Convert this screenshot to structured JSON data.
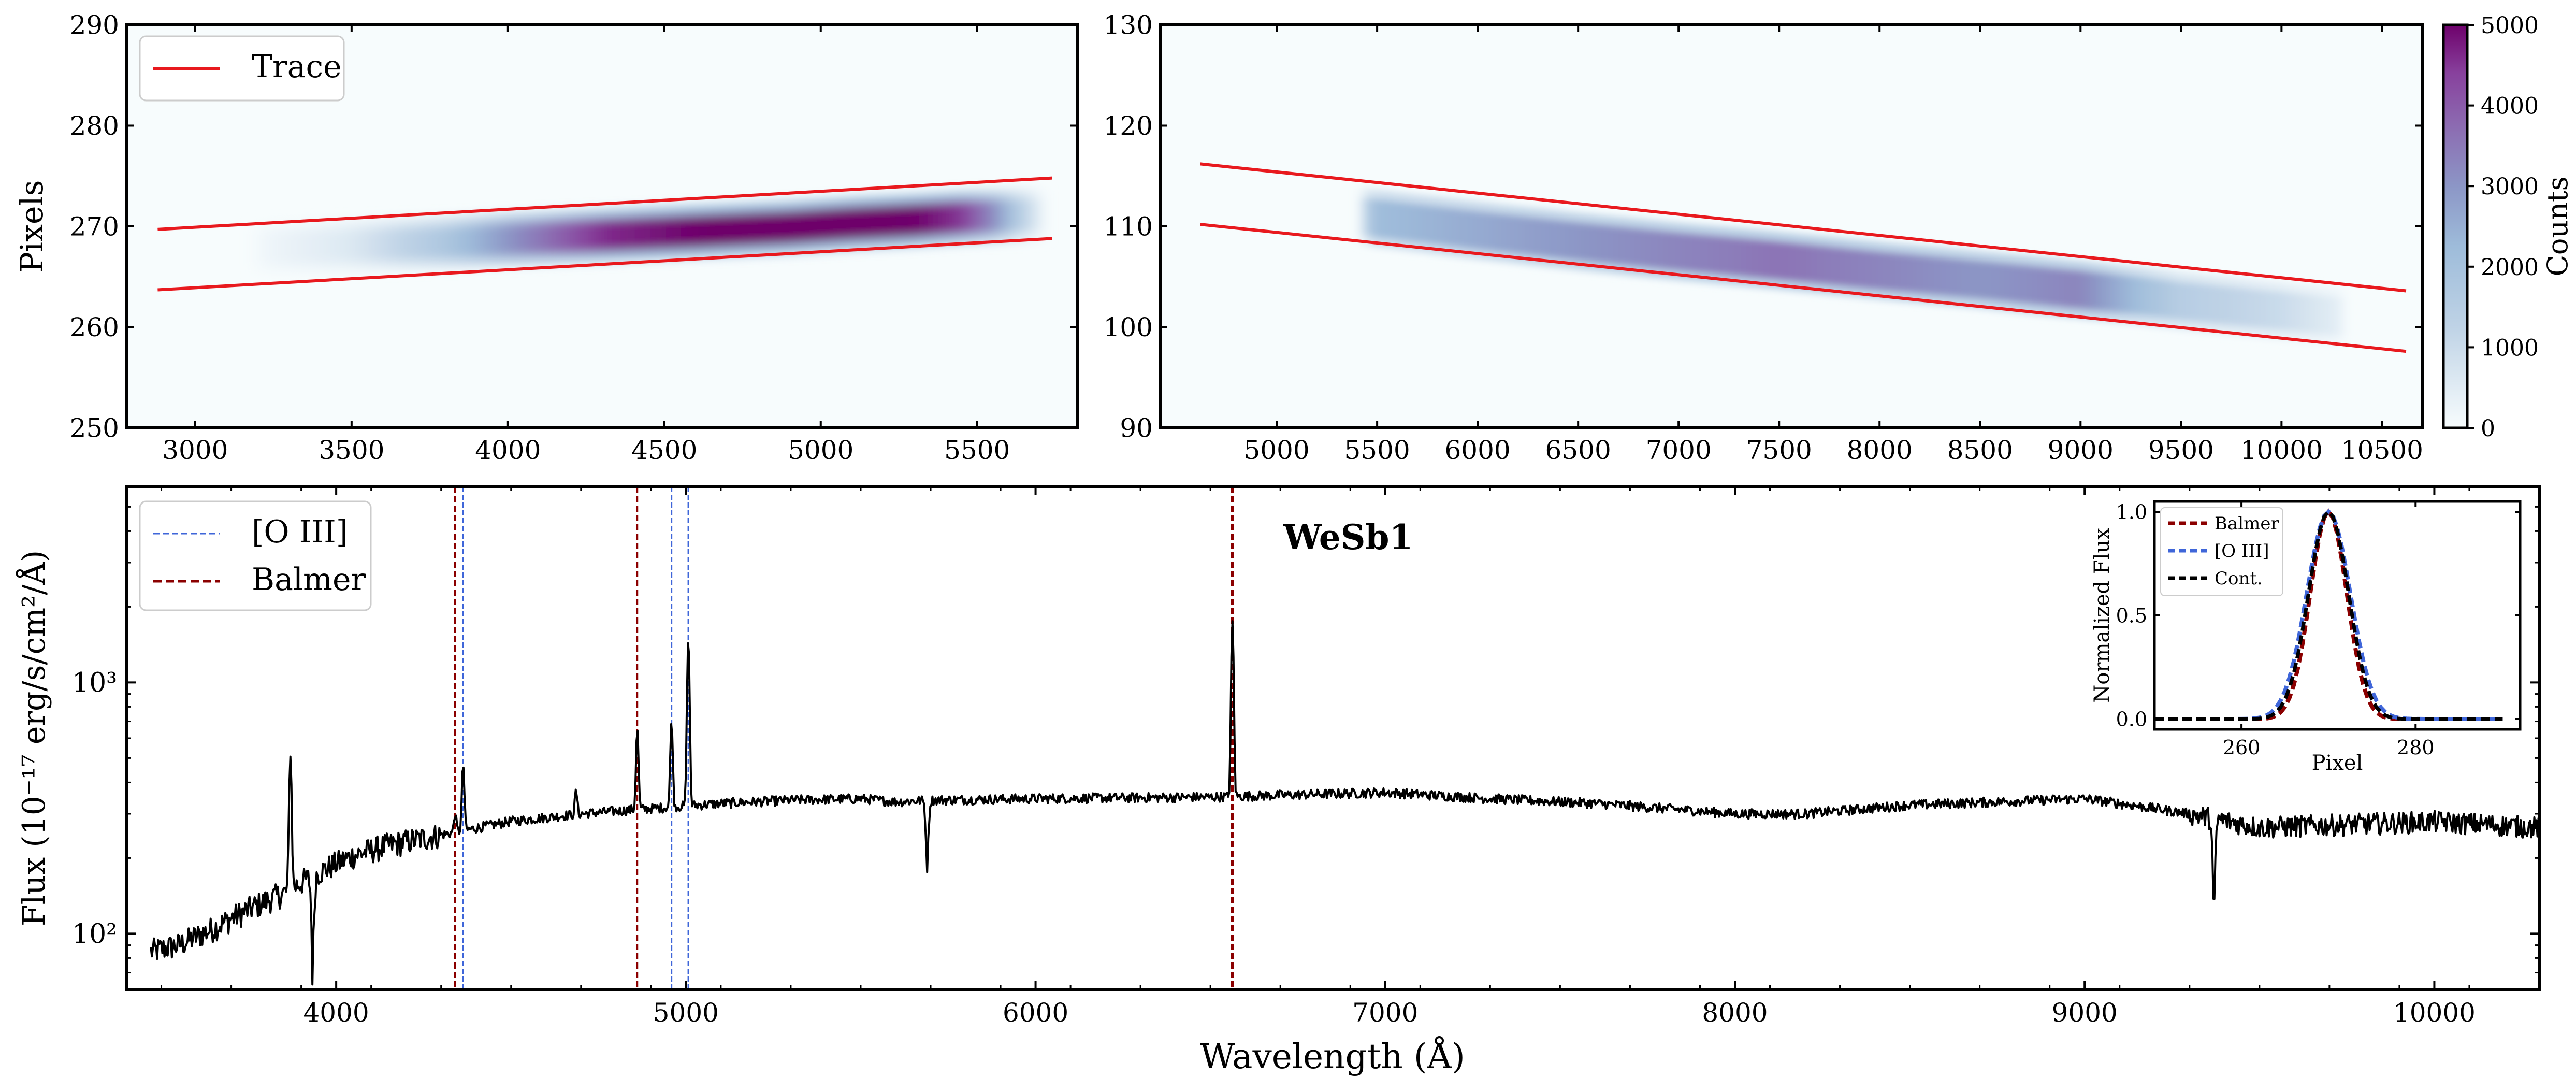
{
  "colors": {
    "trace": "#e8191e",
    "balmer": "#8b0000",
    "oiii": "#3f66d9",
    "spectrum": "#000000",
    "cont": "#000000"
  },
  "chart_data": [
    {
      "id": "spec2d-blue",
      "type": "heatmap",
      "title": "",
      "xlabel": "",
      "ylabel": "Pixels",
      "xlim": [
        2780,
        5820
      ],
      "ylim": [
        250,
        290
      ],
      "xticks": [
        "3000",
        "3500",
        "4000",
        "4500",
        "5000",
        "5500"
      ],
      "yticks": [
        "250",
        "260",
        "270",
        "280",
        "290"
      ],
      "legend": {
        "placement": "top-left",
        "entries": [
          {
            "label": "Trace",
            "style": "trace"
          }
        ]
      },
      "trace_upper": {
        "x": [
          2880,
          5740
        ],
        "y": [
          269.7,
          274.8
        ]
      },
      "trace_lower": {
        "x": [
          2880,
          5740
        ],
        "y": [
          263.7,
          268.8
        ]
      },
      "band": {
        "x": [
          3200,
          3500,
          3800,
          4000,
          4300,
          4600,
          4900,
          5100,
          5300,
          5450,
          5550,
          5620,
          5700
        ],
        "center": [
          267.8,
          268.1,
          268.4,
          268.7,
          269.1,
          269.5,
          269.9,
          270.3,
          270.6,
          270.9,
          271.0,
          271.1,
          271.2
        ],
        "counts": [
          150,
          600,
          1800,
          3000,
          4600,
          5000,
          5000,
          5000,
          5000,
          4500,
          3200,
          1800,
          500
        ]
      }
    },
    {
      "id": "spec2d-red",
      "type": "heatmap",
      "title": "",
      "xlabel": "",
      "ylabel": "",
      "xlim": [
        4420,
        10700
      ],
      "ylim": [
        90,
        130
      ],
      "xticks": [
        "5000",
        "5500",
        "6000",
        "6500",
        "7000",
        "7500",
        "8000",
        "8500",
        "9000",
        "9500",
        "10000",
        "10500"
      ],
      "yticks": [
        "90",
        "100",
        "110",
        "120",
        "130"
      ],
      "colorbar": {
        "label": "Counts",
        "ticks": [
          "0",
          "1000",
          "2000",
          "3000",
          "4000",
          "5000"
        ],
        "range": [
          0,
          5000
        ]
      },
      "trace_upper": {
        "x": [
          4620,
          10620
        ],
        "y": [
          116.2,
          103.6
        ]
      },
      "trace_lower": {
        "x": [
          4620,
          10620
        ],
        "y": [
          110.2,
          97.6
        ]
      },
      "band": {
        "x": [
          5430,
          5500,
          6000,
          6500,
          7000,
          7500,
          8000,
          8500,
          9000,
          9300,
          9500,
          10000,
          10300
        ],
        "center": [
          111.0,
          110.8,
          109.6,
          108.5,
          107.5,
          106.6,
          105.6,
          104.7,
          103.7,
          103.1,
          102.6,
          101.6,
          101.0
        ],
        "counts": [
          1400,
          2200,
          2600,
          3000,
          3300,
          3600,
          3300,
          3000,
          3300,
          2100,
          1500,
          1000,
          400
        ]
      }
    },
    {
      "id": "spectrum-1d",
      "type": "line",
      "title": "WeSb1",
      "xlabel": "Wavelength (Å)",
      "ylabel": "Flux (10⁻¹⁷ erg/s/cm²/Å)",
      "xlim": [
        3400,
        10300
      ],
      "ylim": [
        60,
        6000
      ],
      "yscale": "log",
      "xticks": [
        "4000",
        "5000",
        "6000",
        "7000",
        "8000",
        "9000",
        "10000"
      ],
      "yticks": [
        "10²",
        "10³"
      ],
      "legend": {
        "placement": "top-left",
        "entries": [
          {
            "label": "[O III]",
            "style": "oiii"
          },
          {
            "label": "Balmer",
            "style": "balmer"
          }
        ]
      },
      "balmer_lines": [
        4340,
        4861,
        6563
      ],
      "oiii_lines": [
        4363,
        4959,
        5007
      ],
      "continuum": {
        "x": [
          3470,
          3550,
          3650,
          3750,
          3850,
          3950,
          4050,
          4150,
          4250,
          4350,
          4500,
          4700,
          4900,
          5100,
          5300,
          5500,
          5600,
          5700,
          6000,
          6500,
          7000,
          7300,
          7600,
          8000,
          8200,
          8500,
          9000,
          9300,
          9500,
          10000,
          10300
        ],
        "y": [
          85,
          90,
          105,
          125,
          145,
          175,
          205,
          225,
          240,
          255,
          280,
          300,
          315,
          330,
          340,
          345,
          335,
          340,
          345,
          350,
          365,
          345,
          330,
          300,
          300,
          325,
          345,
          300,
          265,
          280,
          265
        ]
      },
      "lines": [
        {
          "x": 3869,
          "peak": 520
        },
        {
          "x": 4340,
          "peak": 300
        },
        {
          "x": 4363,
          "peak": 470
        },
        {
          "x": 4686,
          "peak": 370
        },
        {
          "x": 4861,
          "peak": 650
        },
        {
          "x": 4959,
          "peak": 700
        },
        {
          "x": 5007,
          "peak": 1500
        },
        {
          "x": 6563,
          "peak": 1750
        }
      ],
      "dips": [
        {
          "x": 3933,
          "min": 75
        },
        {
          "x": 5690,
          "min": 190
        },
        {
          "x": 9370,
          "min": 110
        }
      ]
    },
    {
      "id": "inset-profiles",
      "type": "line",
      "title": "",
      "xlabel": "Pixel",
      "ylabel": "Normalized Flux",
      "xlim": [
        250,
        292
      ],
      "ylim": [
        -0.05,
        1.05
      ],
      "xticks": [
        "260",
        "280"
      ],
      "yticks": [
        "0.0",
        "0.5",
        "1.0"
      ],
      "legend": {
        "placement": "top-left",
        "entries": [
          {
            "label": "Balmer",
            "style": "balmer"
          },
          {
            "label": "[O III]",
            "style": "oiii"
          },
          {
            "label": "Cont.",
            "style": "cont"
          }
        ]
      },
      "series": [
        {
          "name": "Balmer",
          "center": 270.0,
          "sigma": 2.1
        },
        {
          "name": "[O III]",
          "center": 270.0,
          "sigma": 2.5
        },
        {
          "name": "Cont.",
          "center": 270.0,
          "sigma": 2.3
        }
      ]
    }
  ]
}
